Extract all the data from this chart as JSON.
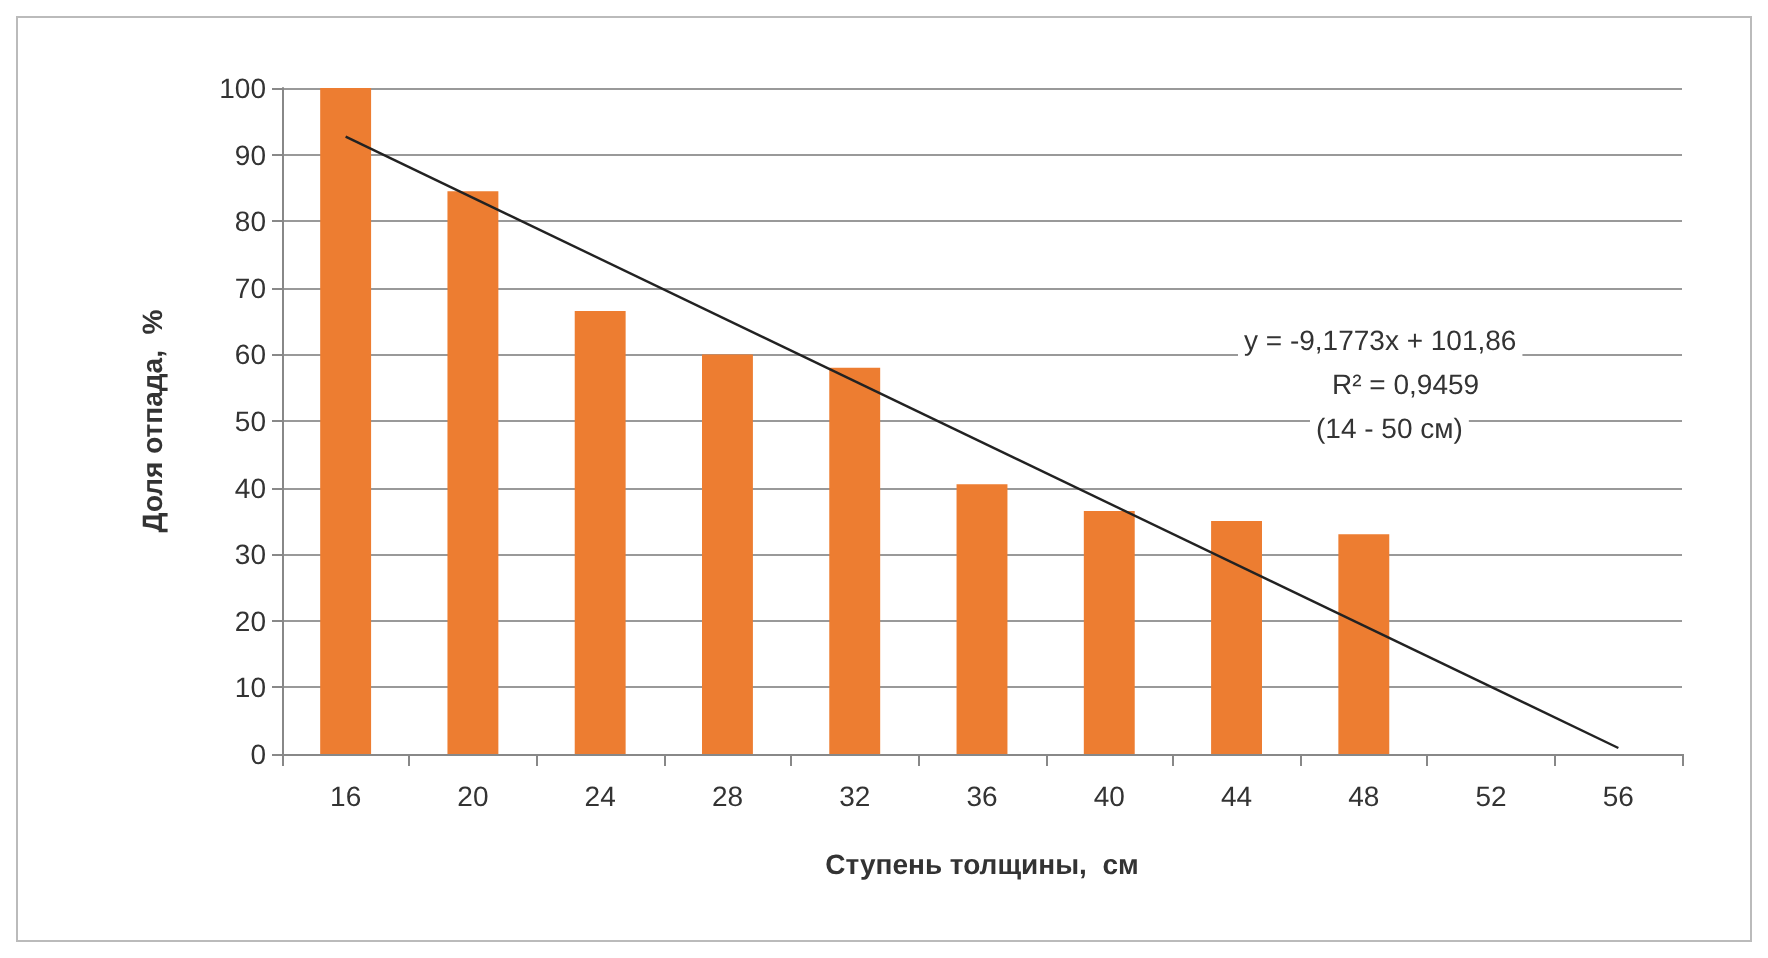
{
  "chart_data": {
    "type": "bar",
    "xlabel": "Ступень толщины,  см",
    "ylabel": "Доля отпада,  %",
    "categories": [
      "16",
      "20",
      "24",
      "28",
      "32",
      "36",
      "40",
      "44",
      "48",
      "52",
      "56"
    ],
    "series": [
      {
        "color": "#ed7d31",
        "values": [
          100,
          84.5,
          66.5,
          60,
          58,
          40.5,
          36.5,
          35,
          33,
          null,
          null
        ]
      },
      {
        "type": "line",
        "color": "#222222",
        "x": [
          "16",
          "56"
        ],
        "values": [
          92.7,
          0.9
        ],
        "marker": "none"
      }
    ],
    "annotations": [
      "y = -9,1773x + 101,86",
      "R² = 0,9459",
      "(14 - 50 см)"
    ],
    "ylim": [
      0,
      100
    ],
    "yticks": [
      0,
      10,
      20,
      30,
      40,
      50,
      60,
      70,
      80,
      90,
      100
    ],
    "grid": "y"
  }
}
